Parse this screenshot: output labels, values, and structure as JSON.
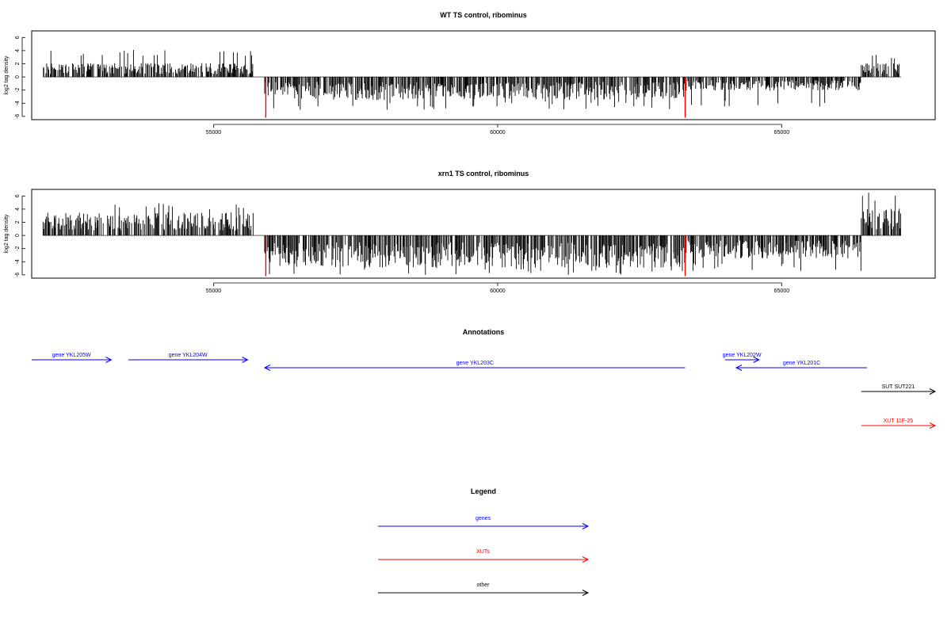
{
  "chart_data": [
    {
      "type": "bar",
      "title": "WT TS control, ribominus",
      "ylabel": "log2 tag density",
      "xlabel": "",
      "xlim": [
        51800,
        67700
      ],
      "ylim": [
        -6.5,
        7
      ],
      "xticks": [
        55000,
        60000,
        65000
      ],
      "yticks": [
        6,
        4,
        2,
        0,
        -2,
        -4,
        -6
      ],
      "profile_summary": [
        {
          "from": 52000,
          "to": 55700,
          "strand": "plus",
          "typical": 1.5,
          "max": 4.2
        },
        {
          "from": 55900,
          "to": 63300,
          "strand": "minus",
          "typical": -2.5,
          "max": -5.0
        },
        {
          "from": 63300,
          "to": 66400,
          "strand": "minus",
          "typical": -1.5,
          "max": -4.8
        },
        {
          "from": 66400,
          "to": 67100,
          "strand": "plus",
          "typical": 1.5,
          "max": 3.6
        }
      ],
      "highlights": [
        {
          "x": 55920,
          "value": -6.2,
          "color": "#ff0000"
        },
        {
          "x": 63300,
          "value": -6.2,
          "color": "#ff0000"
        }
      ]
    },
    {
      "type": "bar",
      "title": "xrn1 TS control, ribominus",
      "ylabel": "log2 tag density",
      "xlabel": "",
      "xlim": [
        51800,
        67700
      ],
      "ylim": [
        -6.5,
        7
      ],
      "xticks": [
        55000,
        60000,
        65000
      ],
      "yticks": [
        6,
        4,
        2,
        0,
        -2,
        -4,
        -6
      ],
      "profile_summary": [
        {
          "from": 52000,
          "to": 55700,
          "strand": "plus",
          "typical": 2.5,
          "max": 5.0
        },
        {
          "from": 55900,
          "to": 63300,
          "strand": "minus",
          "typical": -3.5,
          "max": -6.0
        },
        {
          "from": 63300,
          "to": 66400,
          "strand": "minus",
          "typical": -2.5,
          "max": -5.5
        },
        {
          "from": 66400,
          "to": 67100,
          "strand": "plus",
          "typical": 3.0,
          "max": 7.0
        }
      ],
      "highlights": [
        {
          "x": 55920,
          "value": -6.2,
          "color": "#ff0000"
        },
        {
          "x": 63300,
          "value": -6.2,
          "color": "#ff0000"
        }
      ]
    }
  ],
  "annotations": {
    "title": "Annotations",
    "features": [
      {
        "label": "gene YKL205W",
        "start": 51800,
        "end": 53200,
        "strand": "+",
        "color": "#0000ff",
        "track": 1
      },
      {
        "label": "gene YKL204W",
        "start": 53500,
        "end": 55600,
        "strand": "+",
        "color": "#0000ff",
        "track": 1
      },
      {
        "label": "gene YKL203C",
        "start": 55900,
        "end": 63300,
        "strand": "-",
        "color": "#0000ff",
        "track": 2
      },
      {
        "label": "gene YKL202W",
        "start": 64000,
        "end": 64600,
        "strand": "+",
        "color": "#0000ff",
        "track": 1
      },
      {
        "label": "gene YKL201C",
        "start": 64200,
        "end": 66500,
        "strand": "-",
        "color": "#0000ff",
        "track": 2
      },
      {
        "label": "SUT SUT221",
        "start": 66400,
        "end": 67700,
        "strand": "+",
        "color": "#000000",
        "track": 3
      },
      {
        "label": "XUT 11F-25",
        "start": 66400,
        "end": 67700,
        "strand": "+",
        "color": "#ff0000",
        "track": 4
      }
    ]
  },
  "legend": {
    "title": "Legend",
    "items": [
      {
        "label": "genes",
        "color": "#0000ff"
      },
      {
        "label": "XUTs",
        "color": "#ff0000"
      },
      {
        "label": "other",
        "color": "#000000"
      }
    ]
  }
}
